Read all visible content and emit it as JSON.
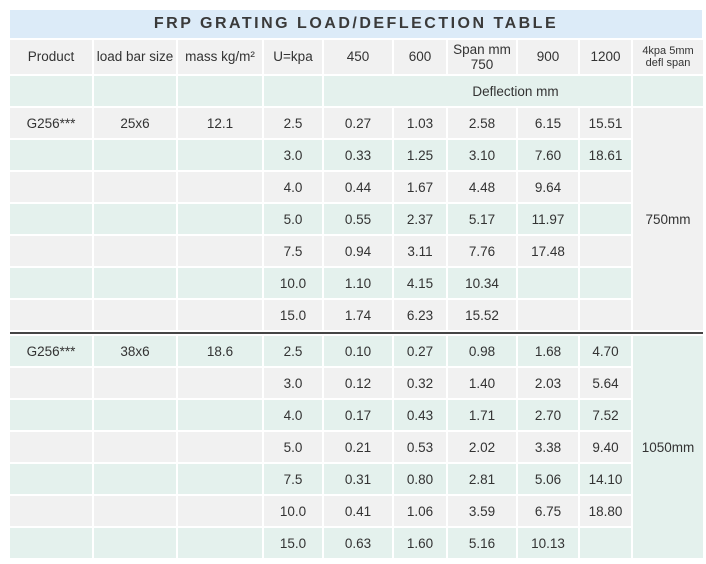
{
  "title": "FRP GRATING LOAD/DEFLECTION TABLE",
  "colors": {
    "title_bg": "#dcebf8",
    "row_gray": "#f1f1f1",
    "row_mint": "#e4f1ed",
    "divider": "#454545",
    "text": "#333333"
  },
  "table": {
    "headers": [
      {
        "label": "Product"
      },
      {
        "label": "load bar size"
      },
      {
        "label": "mass kg/m²"
      },
      {
        "label": "U=kpa"
      },
      {
        "label": "450"
      },
      {
        "label": "600"
      },
      {
        "label": "Span mm",
        "label2": "750"
      },
      {
        "label": "900"
      },
      {
        "label": "1200"
      },
      {
        "label": "4kpa 5mm",
        "label2": "defl span"
      }
    ],
    "subheader": "Deflection mm",
    "sections": [
      {
        "product": "G256***",
        "load_bar_size": "25x6",
        "mass": "12.1",
        "defl_span": "750mm",
        "first_stripe": "gray",
        "rows": [
          {
            "u": "2.5",
            "values": [
              "0.27",
              "1.03",
              "2.58",
              "6.15",
              "15.51"
            ]
          },
          {
            "u": "3.0",
            "values": [
              "0.33",
              "1.25",
              "3.10",
              "7.60",
              "18.61"
            ]
          },
          {
            "u": "4.0",
            "values": [
              "0.44",
              "1.67",
              "4.48",
              "9.64",
              ""
            ]
          },
          {
            "u": "5.0",
            "values": [
              "0.55",
              "2.37",
              "5.17",
              "11.97",
              ""
            ]
          },
          {
            "u": "7.5",
            "values": [
              "0.94",
              "3.11",
              "7.76",
              "17.48",
              ""
            ]
          },
          {
            "u": "10.0",
            "values": [
              "1.10",
              "4.15",
              "10.34",
              "",
              ""
            ]
          },
          {
            "u": "15.0",
            "values": [
              "1.74",
              "6.23",
              "15.52",
              "",
              ""
            ]
          }
        ]
      },
      {
        "product": "G256***",
        "load_bar_size": "38x6",
        "mass": "18.6",
        "defl_span": "1050mm",
        "first_stripe": "mint",
        "rows": [
          {
            "u": "2.5",
            "values": [
              "0.10",
              "0.27",
              "0.98",
              "1.68",
              "4.70"
            ]
          },
          {
            "u": "3.0",
            "values": [
              "0.12",
              "0.32",
              "1.40",
              "2.03",
              "5.64"
            ]
          },
          {
            "u": "4.0",
            "values": [
              "0.17",
              "0.43",
              "1.71",
              "2.70",
              "7.52"
            ]
          },
          {
            "u": "5.0",
            "values": [
              "0.21",
              "0.53",
              "2.02",
              "3.38",
              "9.40"
            ]
          },
          {
            "u": "7.5",
            "values": [
              "0.31",
              "0.80",
              "2.81",
              "5.06",
              "14.10"
            ]
          },
          {
            "u": "10.0",
            "values": [
              "0.41",
              "1.06",
              "3.59",
              "6.75",
              "18.80"
            ]
          },
          {
            "u": "15.0",
            "values": [
              "0.63",
              "1.60",
              "5.16",
              "10.13",
              ""
            ]
          }
        ]
      }
    ]
  },
  "chart_data": {
    "type": "table",
    "title": "FRP GRATING LOAD/DEFLECTION TABLE",
    "columns": [
      "Product",
      "load bar size",
      "mass kg/m²",
      "U=kpa",
      "450",
      "600",
      "750",
      "900",
      "1200",
      "4kpa 5mm defl span"
    ],
    "span_unit_note": "Span mm",
    "value_unit_note": "Deflection mm",
    "rows": [
      [
        "G256***",
        "25x6",
        "12.1",
        "2.5",
        "0.27",
        "1.03",
        "2.58",
        "6.15",
        "15.51",
        "750mm"
      ],
      [
        "",
        "",
        "",
        "3.0",
        "0.33",
        "1.25",
        "3.10",
        "7.60",
        "18.61",
        ""
      ],
      [
        "",
        "",
        "",
        "4.0",
        "0.44",
        "1.67",
        "4.48",
        "9.64",
        "",
        ""
      ],
      [
        "",
        "",
        "",
        "5.0",
        "0.55",
        "2.37",
        "5.17",
        "11.97",
        "",
        ""
      ],
      [
        "",
        "",
        "",
        "7.5",
        "0.94",
        "3.11",
        "7.76",
        "17.48",
        "",
        ""
      ],
      [
        "",
        "",
        "",
        "10.0",
        "1.10",
        "4.15",
        "10.34",
        "",
        "",
        ""
      ],
      [
        "",
        "",
        "",
        "15.0",
        "1.74",
        "6.23",
        "15.52",
        "",
        "",
        ""
      ],
      [
        "G256***",
        "38x6",
        "18.6",
        "2.5",
        "0.10",
        "0.27",
        "0.98",
        "1.68",
        "4.70",
        "1050mm"
      ],
      [
        "",
        "",
        "",
        "3.0",
        "0.12",
        "0.32",
        "1.40",
        "2.03",
        "5.64",
        ""
      ],
      [
        "",
        "",
        "",
        "4.0",
        "0.17",
        "0.43",
        "1.71",
        "2.70",
        "7.52",
        ""
      ],
      [
        "",
        "",
        "",
        "5.0",
        "0.21",
        "0.53",
        "2.02",
        "3.38",
        "9.40",
        ""
      ],
      [
        "",
        "",
        "",
        "7.5",
        "0.31",
        "0.80",
        "2.81",
        "5.06",
        "14.10",
        ""
      ],
      [
        "",
        "",
        "",
        "10.0",
        "0.41",
        "1.06",
        "3.59",
        "6.75",
        "18.80",
        ""
      ],
      [
        "",
        "",
        "",
        "15.0",
        "0.63",
        "1.60",
        "5.16",
        "10.13",
        "",
        ""
      ]
    ]
  }
}
